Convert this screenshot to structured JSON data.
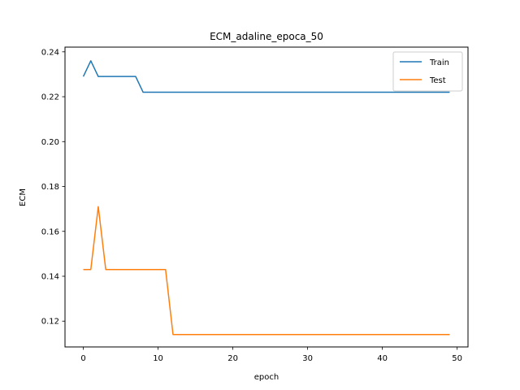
{
  "chart_data": {
    "type": "line",
    "title": "ECM_adaline_epoca_50",
    "xlabel": "epoch",
    "ylabel": "ECM",
    "xlim": [
      -2.45,
      51.45
    ],
    "ylim": [
      0.1085,
      0.2421
    ],
    "xticks": [
      0,
      10,
      20,
      30,
      40,
      50
    ],
    "yticks": [
      0.12,
      0.14,
      0.16,
      0.18,
      0.2,
      0.22,
      0.24
    ],
    "ytick_labels": [
      "0.12",
      "0.14",
      "0.16",
      "0.18",
      "0.20",
      "0.22",
      "0.24"
    ],
    "grid": false,
    "legend": "top-right",
    "series": [
      {
        "name": "Train",
        "color": "#1f77b4",
        "x": [
          0,
          1,
          2,
          3,
          4,
          5,
          6,
          7,
          8,
          9,
          10,
          11,
          12,
          13,
          14,
          15,
          16,
          17,
          18,
          19,
          20,
          21,
          22,
          23,
          24,
          25,
          26,
          27,
          28,
          29,
          30,
          31,
          32,
          33,
          34,
          35,
          36,
          37,
          38,
          39,
          40,
          41,
          42,
          43,
          44,
          45,
          46,
          47,
          48,
          49
        ],
        "values": [
          0.229,
          0.236,
          0.229,
          0.229,
          0.229,
          0.229,
          0.229,
          0.229,
          0.222,
          0.222,
          0.222,
          0.222,
          0.222,
          0.222,
          0.222,
          0.222,
          0.222,
          0.222,
          0.222,
          0.222,
          0.222,
          0.222,
          0.222,
          0.222,
          0.222,
          0.222,
          0.222,
          0.222,
          0.222,
          0.222,
          0.222,
          0.222,
          0.222,
          0.222,
          0.222,
          0.222,
          0.222,
          0.222,
          0.222,
          0.222,
          0.222,
          0.222,
          0.222,
          0.222,
          0.222,
          0.222,
          0.222,
          0.222,
          0.222,
          0.222
        ]
      },
      {
        "name": "Test",
        "color": "#ff7f0e",
        "x": [
          0,
          1,
          2,
          3,
          4,
          5,
          6,
          7,
          8,
          9,
          10,
          11,
          12,
          13,
          14,
          15,
          16,
          17,
          18,
          19,
          20,
          21,
          22,
          23,
          24,
          25,
          26,
          27,
          28,
          29,
          30,
          31,
          32,
          33,
          34,
          35,
          36,
          37,
          38,
          39,
          40,
          41,
          42,
          43,
          44,
          45,
          46,
          47,
          48,
          49
        ],
        "values": [
          0.143,
          0.143,
          0.171,
          0.143,
          0.143,
          0.143,
          0.143,
          0.143,
          0.143,
          0.143,
          0.143,
          0.143,
          0.114,
          0.114,
          0.114,
          0.114,
          0.114,
          0.114,
          0.114,
          0.114,
          0.114,
          0.114,
          0.114,
          0.114,
          0.114,
          0.114,
          0.114,
          0.114,
          0.114,
          0.114,
          0.114,
          0.114,
          0.114,
          0.114,
          0.114,
          0.114,
          0.114,
          0.114,
          0.114,
          0.114,
          0.114,
          0.114,
          0.114,
          0.114,
          0.114,
          0.114,
          0.114,
          0.114,
          0.114,
          0.114
        ]
      }
    ]
  }
}
